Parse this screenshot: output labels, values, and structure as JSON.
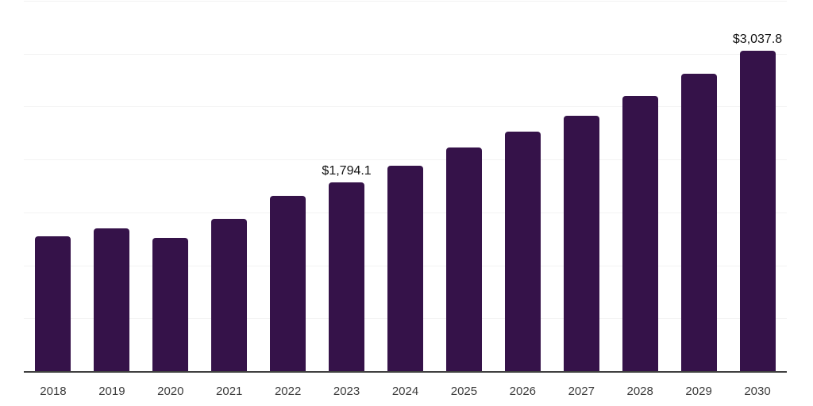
{
  "colors": {
    "background": "#ffffff",
    "bar": "#351249",
    "gridline": "#f2f2f2",
    "axis_line": "#404040",
    "tick_label": "#3d3d3d",
    "data_label": "#111111"
  },
  "chart_data": {
    "type": "bar",
    "categories": [
      "2018",
      "2019",
      "2020",
      "2021",
      "2022",
      "2023",
      "2024",
      "2025",
      "2026",
      "2027",
      "2028",
      "2029",
      "2030"
    ],
    "values": [
      1285,
      1360,
      1265,
      1445,
      1665,
      1794.1,
      1950,
      2120,
      2270,
      2420,
      2610,
      2815,
      3037.8
    ],
    "data_labels": [
      "",
      "",
      "",
      "",
      "",
      "$1,794.1",
      "",
      "",
      "",
      "",
      "",
      "",
      "$3,037.8"
    ],
    "title": "",
    "xlabel": "",
    "ylabel": "",
    "ylim": [
      0,
      3500
    ],
    "gridline_step": 500,
    "grid": "horizontal",
    "legend": "none",
    "note": "No y-axis tick labels visible; only the 2023 and 2030 bars carry data labels. Unlabeled bar values estimated from gridlines (step = 500)."
  }
}
